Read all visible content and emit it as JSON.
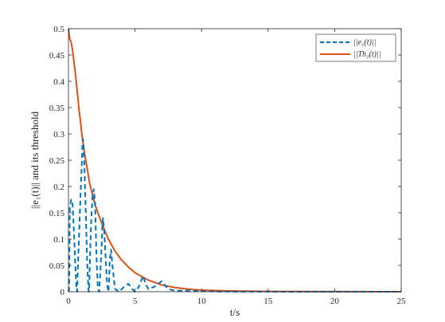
{
  "chart_data": {
    "type": "line",
    "title": "",
    "xlabel": "t/s",
    "ylabel": "||e₁(t)|| and its threshold",
    "xlim": [
      0,
      25
    ],
    "ylim": [
      0,
      0.5
    ],
    "xticks": [
      0,
      5,
      10,
      15,
      20,
      25
    ],
    "yticks": [
      0,
      0.05,
      0.1,
      0.15,
      0.2,
      0.25,
      0.3,
      0.35,
      0.4,
      0.45,
      0.5
    ],
    "xtick_labels": [
      "0",
      "5",
      "10",
      "15",
      "20",
      "25"
    ],
    "ytick_labels": [
      "0",
      "0.05",
      "0.1",
      "0.15",
      "0.2",
      "0.25",
      "0.3",
      "0.35",
      "0.4",
      "0.45",
      "0.5"
    ],
    "grid": false,
    "legend_position": "top-right",
    "series": [
      {
        "name": "||e₁(t)||",
        "color": "#0072BD",
        "style": "dashed",
        "x": [
          0,
          0.05,
          0.1,
          0.2,
          0.3,
          0.4,
          0.5,
          0.6,
          0.65,
          0.7,
          0.8,
          0.9,
          1.0,
          1.05,
          1.1,
          1.2,
          1.3,
          1.4,
          1.5,
          1.55,
          1.6,
          1.7,
          1.8,
          1.9,
          2.0,
          2.05,
          2.1,
          2.2,
          2.3,
          2.4,
          2.5,
          2.55,
          2.6,
          2.7,
          2.8,
          2.9,
          3.0,
          3.05,
          3.1,
          3.2,
          3.3,
          3.5,
          3.8,
          4.2,
          4.5,
          4.8,
          5.0,
          5.3,
          5.6,
          5.8,
          6.0,
          6.5,
          7.0,
          7.5,
          8.0,
          9.0,
          10.0,
          11.0,
          12.0,
          15.0,
          20.0,
          25.0
        ],
        "y": [
          0,
          0.005,
          0.16,
          0.175,
          0.17,
          0.12,
          0.06,
          0.005,
          0,
          0.04,
          0.11,
          0.18,
          0.24,
          0.28,
          0.29,
          0.24,
          0.15,
          0.06,
          0.003,
          0,
          0.05,
          0.13,
          0.18,
          0.195,
          0.17,
          0.12,
          0.07,
          0.01,
          0,
          0.04,
          0.09,
          0.13,
          0.14,
          0.11,
          0.06,
          0.015,
          0,
          0.02,
          0.06,
          0.08,
          0.05,
          0.005,
          0,
          0.01,
          0.015,
          0.005,
          0,
          0.01,
          0.03,
          0.015,
          0.005,
          0.01,
          0.02,
          0.005,
          0.002,
          0.002,
          0.001,
          0.0005,
          0.0003,
          0.0001,
          0.0,
          0.0
        ]
      },
      {
        "name": "||Th₁(t)||",
        "color": "#D95319",
        "style": "solid",
        "x": [
          0,
          0.1,
          0.2,
          0.3,
          0.4,
          0.5,
          0.6,
          0.7,
          0.8,
          0.9,
          1.0,
          1.2,
          1.4,
          1.6,
          1.8,
          2.0,
          2.5,
          3.0,
          3.5,
          4.0,
          4.5,
          5.0,
          6.0,
          7.0,
          8.0,
          9.0,
          10.0,
          12.0,
          15.0,
          20.0,
          25.0
        ],
        "y": [
          0.5,
          0.48,
          0.475,
          0.46,
          0.44,
          0.42,
          0.395,
          0.37,
          0.345,
          0.325,
          0.3,
          0.265,
          0.235,
          0.205,
          0.185,
          0.165,
          0.13,
          0.1,
          0.077,
          0.06,
          0.047,
          0.036,
          0.022,
          0.013,
          0.008,
          0.005,
          0.003,
          0.0015,
          0.0005,
          0.0001,
          0.0
        ]
      }
    ]
  }
}
